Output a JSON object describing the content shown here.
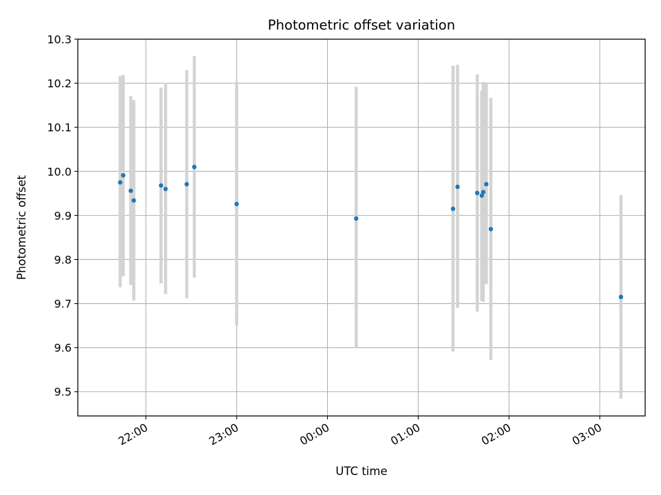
{
  "colors": {
    "point": "#1f77b4",
    "errorbar": "#d3d3d3",
    "grid": "#b0b0b0",
    "axis": "#000000",
    "background": "#ffffff"
  },
  "chart_data": {
    "type": "scatter",
    "title": "Photometric offset variation",
    "xlabel": "UTC time",
    "ylabel": "Photometric offset",
    "grid": true,
    "xlim": [
      "21:15",
      "03:30"
    ],
    "ylim": [
      9.445,
      10.3
    ],
    "x_tick_labels": [
      "22:00",
      "23:00",
      "00:00",
      "01:00",
      "02:00",
      "03:00"
    ],
    "y_tick_labels": [
      "9.5",
      "9.6",
      "9.7",
      "9.8",
      "9.9",
      "10.0",
      "10.1",
      "10.2",
      "10.3"
    ],
    "series": [
      {
        "points": [
          {
            "x": "21:43",
            "y": 9.975,
            "err_low": 9.737,
            "err_high": 10.217
          },
          {
            "x": "21:45",
            "y": 9.991,
            "err_low": 9.762,
            "err_high": 10.219
          },
          {
            "x": "21:50",
            "y": 9.956,
            "err_low": 9.742,
            "err_high": 10.171
          },
          {
            "x": "21:52",
            "y": 9.934,
            "err_low": 9.707,
            "err_high": 10.162
          },
          {
            "x": "22:10",
            "y": 9.968,
            "err_low": 9.746,
            "err_high": 10.19
          },
          {
            "x": "22:13",
            "y": 9.96,
            "err_low": 9.722,
            "err_high": 10.198
          },
          {
            "x": "22:27",
            "y": 9.971,
            "err_low": 9.712,
            "err_high": 10.23
          },
          {
            "x": "22:32",
            "y": 10.01,
            "err_low": 9.759,
            "err_high": 10.262
          },
          {
            "x": "23:00",
            "y": 9.926,
            "err_low": 9.65,
            "err_high": 10.204
          },
          {
            "x": "00:19",
            "y": 9.893,
            "err_low": 9.6,
            "err_high": 10.192
          },
          {
            "x": "01:23",
            "y": 9.915,
            "err_low": 9.591,
            "err_high": 10.24
          },
          {
            "x": "01:26",
            "y": 9.965,
            "err_low": 9.69,
            "err_high": 10.242
          },
          {
            "x": "01:39",
            "y": 9.951,
            "err_low": 9.682,
            "err_high": 10.22
          },
          {
            "x": "01:42",
            "y": 9.945,
            "err_low": 9.706,
            "err_high": 10.183
          },
          {
            "x": "01:43",
            "y": 9.953,
            "err_low": 9.704,
            "err_high": 10.203
          },
          {
            "x": "01:45",
            "y": 9.971,
            "err_low": 9.744,
            "err_high": 10.199
          },
          {
            "x": "01:48",
            "y": 9.869,
            "err_low": 9.572,
            "err_high": 10.167
          },
          {
            "x": "03:14",
            "y": 9.715,
            "err_low": 9.484,
            "err_high": 9.946
          }
        ]
      }
    ]
  }
}
